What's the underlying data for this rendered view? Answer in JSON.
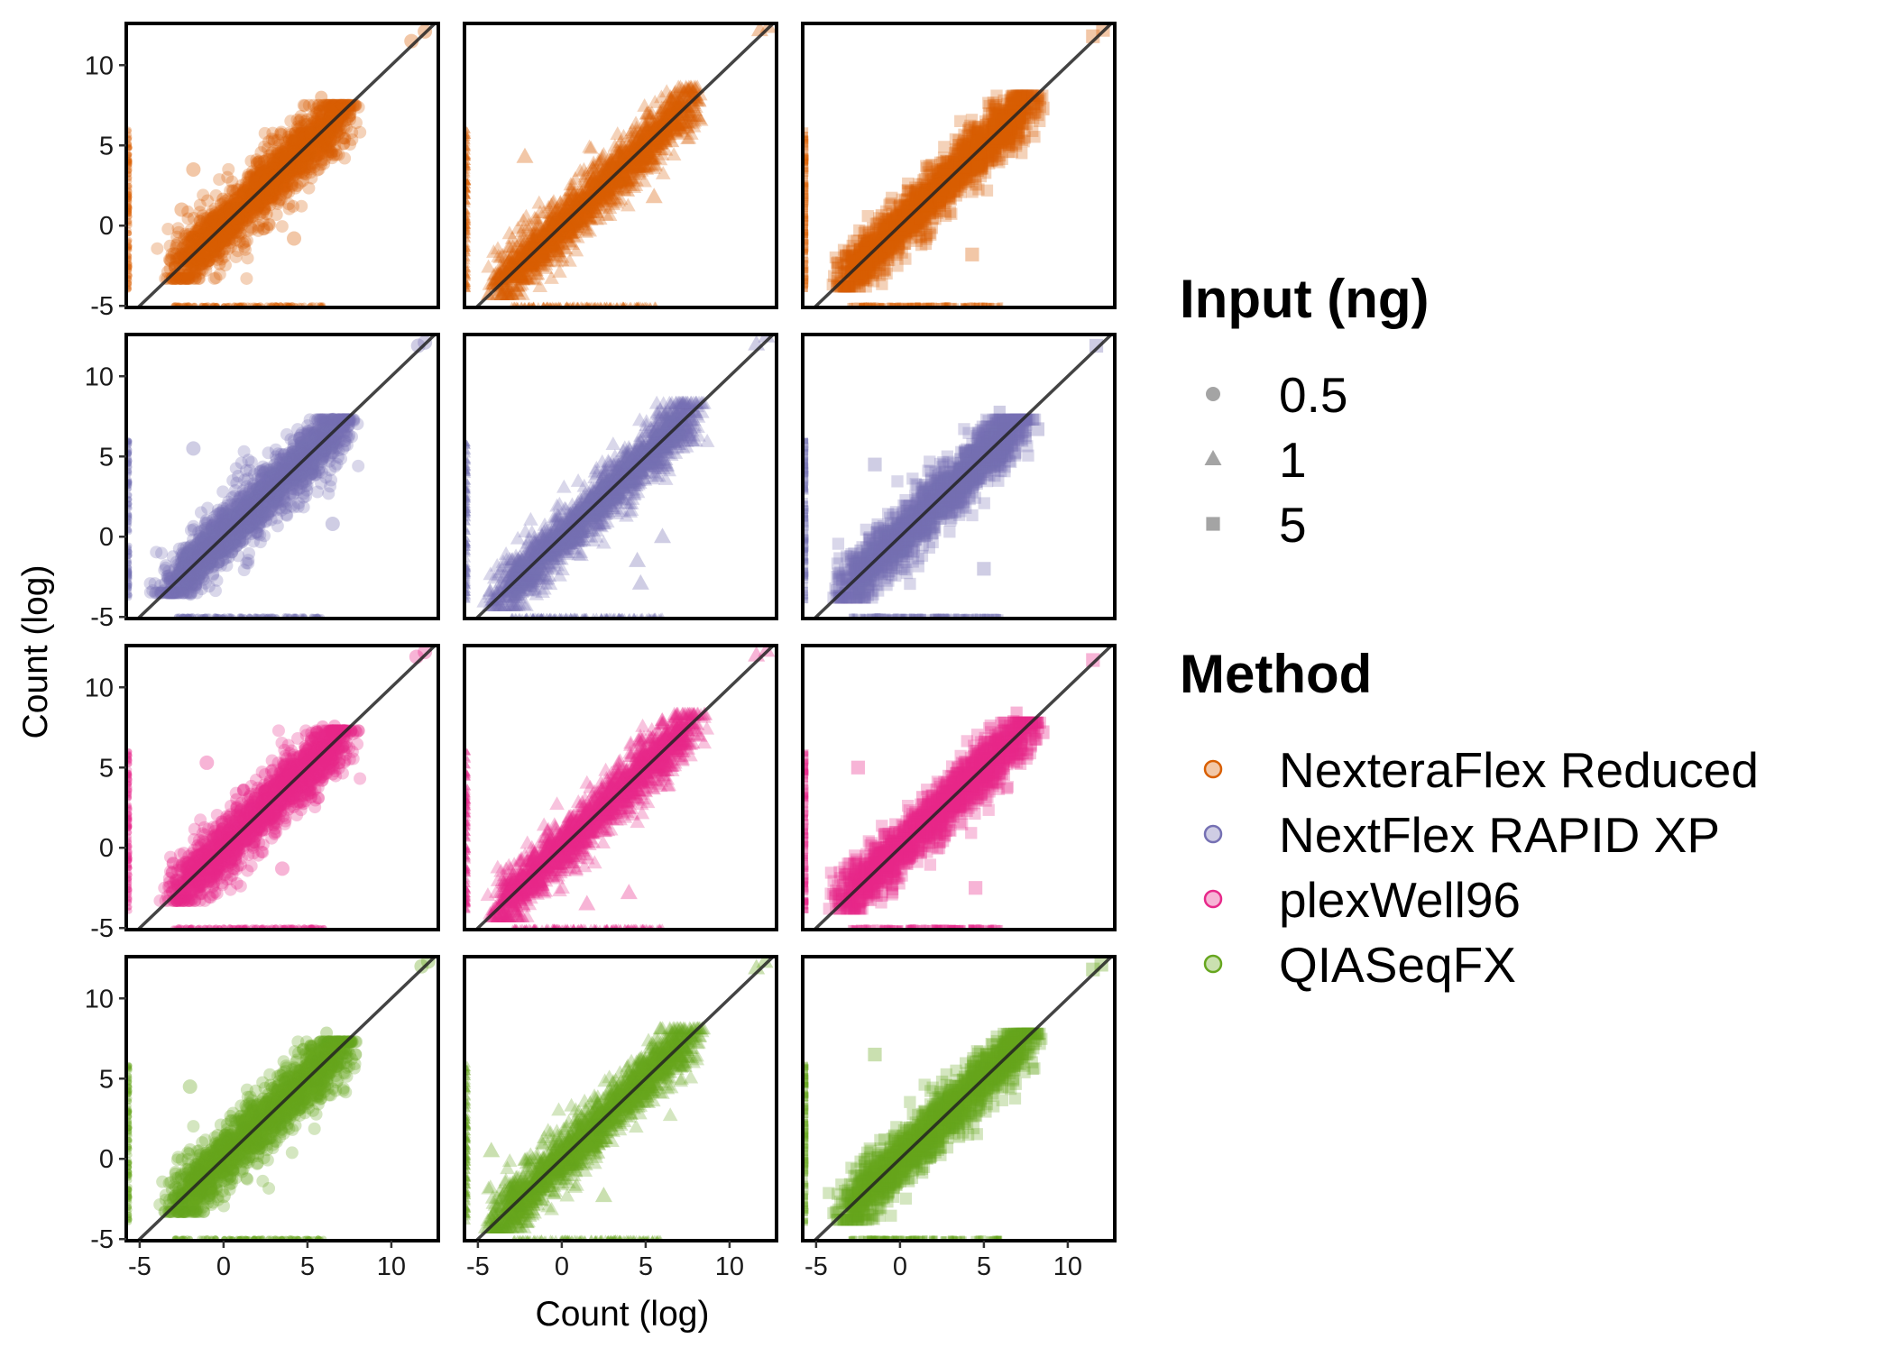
{
  "chart_data": {
    "type": "scatter",
    "facet_layout": {
      "rows": 4,
      "cols": 3
    },
    "xlabel": "Count (log)",
    "ylabel": "Count (log)",
    "xlim": [
      -5.8,
      12.8
    ],
    "ylim": [
      -5.1,
      12.6
    ],
    "xticks": [
      -5,
      0,
      5,
      10
    ],
    "yticks": [
      -5,
      0,
      5,
      10
    ],
    "reference_line": {
      "slope": 1,
      "intercept": 0,
      "color": "#222222"
    },
    "legends": [
      {
        "title": "Input (ng)",
        "color": "#9a9a9a",
        "entries": [
          {
            "label": "0.5",
            "shape": "circle"
          },
          {
            "label": "1",
            "shape": "triangle"
          },
          {
            "label": "5",
            "shape": "square"
          }
        ]
      },
      {
        "title": "Method",
        "shape": "circle",
        "entries": [
          {
            "label": "NexteraFlex Reduced",
            "color": "#D95F02"
          },
          {
            "label": "NextFlex RAPID XP",
            "color": "#7570B3"
          },
          {
            "label": "plexWell96",
            "color": "#E7298A"
          },
          {
            "label": "QIASeqFX",
            "color": "#66A61E"
          }
        ]
      }
    ],
    "series": [
      {
        "method": "NexteraFlex Reduced",
        "input_ng": "0.5",
        "color": "#D95F02",
        "shape": "circle",
        "bulk": {
          "x_range": [
            -3,
            7.5
          ],
          "y_range": [
            -3,
            7.2
          ],
          "spread": 1.2
        },
        "zero_points_x": [
          -5,
          0,
          5
        ],
        "zero_points_y": [
          -5,
          0,
          5
        ],
        "outliers": [
          [
            -2.5,
            1.0
          ],
          [
            4.2,
            -0.8
          ],
          [
            11.2,
            11.5
          ],
          [
            12,
            12.1
          ],
          [
            -1.8,
            3.5
          ]
        ]
      },
      {
        "method": "NexteraFlex Reduced",
        "input_ng": "1",
        "color": "#D95F02",
        "shape": "triangle",
        "bulk": {
          "x_range": [
            -4,
            8
          ],
          "y_range": [
            -4,
            8.3
          ],
          "spread": 1.0
        },
        "zero_points_x": [
          -5,
          0,
          5
        ],
        "zero_points_y": [
          -5,
          0,
          5
        ],
        "outliers": [
          [
            -2.2,
            4.3
          ],
          [
            5.5,
            1.8
          ],
          [
            11.8,
            12.2
          ],
          [
            12.3,
            12.4
          ]
        ]
      },
      {
        "method": "NexteraFlex Reduced",
        "input_ng": "5",
        "color": "#D95F02",
        "shape": "square",
        "bulk": {
          "x_range": [
            -3.5,
            8
          ],
          "y_range": [
            -3.5,
            7.8
          ],
          "spread": 1.0
        },
        "zero_points_x": [
          -5,
          0,
          5
        ],
        "zero_points_y": [
          -5,
          0,
          5
        ],
        "outliers": [
          [
            8.5,
            7.3
          ],
          [
            4.3,
            -1.8
          ],
          [
            11.5,
            11.8
          ],
          [
            12.1,
            12.2
          ]
        ]
      },
      {
        "method": "NextFlex RAPID XP",
        "input_ng": "0.5",
        "color": "#7570B3",
        "shape": "circle",
        "bulk": {
          "x_range": [
            -3.5,
            7.5
          ],
          "y_range": [
            -3.2,
            7.0
          ],
          "spread": 1.2
        },
        "zero_points_x": [
          -5,
          0,
          5
        ],
        "zero_points_y": [
          -5,
          0,
          5
        ],
        "outliers": [
          [
            -1.8,
            5.5
          ],
          [
            6.5,
            0.8
          ],
          [
            11.6,
            11.9
          ],
          [
            12,
            12.1
          ]
        ]
      },
      {
        "method": "NextFlex RAPID XP",
        "input_ng": "1",
        "color": "#7570B3",
        "shape": "triangle",
        "bulk": {
          "x_range": [
            -4,
            8
          ],
          "y_range": [
            -4,
            8.0
          ],
          "spread": 1.0
        },
        "zero_points_x": [
          -5,
          0,
          5
        ],
        "zero_points_y": [
          -5,
          0,
          5
        ],
        "outliers": [
          [
            4.5,
            -1.5
          ],
          [
            4.7,
            -2.9
          ],
          [
            6.0,
            0.0
          ],
          [
            11.6,
            12.0
          ],
          [
            12.2,
            12.5
          ]
        ]
      },
      {
        "method": "NextFlex RAPID XP",
        "input_ng": "5",
        "color": "#7570B3",
        "shape": "square",
        "bulk": {
          "x_range": [
            -3.5,
            7.5
          ],
          "y_range": [
            -3.5,
            7.0
          ],
          "spread": 1.1
        },
        "zero_points_x": [
          -5,
          0,
          5
        ],
        "zero_points_y": [
          -5,
          0,
          5
        ],
        "outliers": [
          [
            -1.5,
            4.5
          ],
          [
            5.0,
            -2.0
          ],
          [
            8.2,
            6.7
          ],
          [
            11.7,
            11.9
          ]
        ]
      },
      {
        "method": "plexWell96",
        "input_ng": "0.5",
        "color": "#E7298A",
        "shape": "circle",
        "bulk": {
          "x_range": [
            -3,
            7.5
          ],
          "y_range": [
            -3,
            7.0
          ],
          "spread": 1.2
        },
        "zero_points_x": [
          -5,
          0,
          5
        ],
        "zero_points_y": [
          -5,
          0,
          5
        ],
        "outliers": [
          [
            -1.0,
            5.3
          ],
          [
            3.5,
            -1.3
          ],
          [
            11.5,
            11.9
          ],
          [
            12,
            12.2
          ]
        ]
      },
      {
        "method": "plexWell96",
        "input_ng": "1",
        "color": "#E7298A",
        "shape": "triangle",
        "bulk": {
          "x_range": [
            -4,
            8
          ],
          "y_range": [
            -4,
            8.0
          ],
          "spread": 1.0
        },
        "zero_points_x": [
          -5,
          0,
          5
        ],
        "zero_points_y": [
          -5,
          0,
          5
        ],
        "outliers": [
          [
            1.5,
            -3.5
          ],
          [
            4.0,
            -2.8
          ],
          [
            11.6,
            12.0
          ],
          [
            12.2,
            12.3
          ]
        ]
      },
      {
        "method": "plexWell96",
        "input_ng": "5",
        "color": "#E7298A",
        "shape": "square",
        "bulk": {
          "x_range": [
            -3.5,
            8
          ],
          "y_range": [
            -3.5,
            7.5
          ],
          "spread": 1.0
        },
        "zero_points_x": [
          -5,
          0,
          5
        ],
        "zero_points_y": [
          -5,
          0,
          5
        ],
        "outliers": [
          [
            -2.5,
            5.0
          ],
          [
            4.5,
            -2.5
          ],
          [
            8.5,
            7.2
          ],
          [
            11.5,
            11.7
          ]
        ]
      },
      {
        "method": "QIASeqFX",
        "input_ng": "0.5",
        "color": "#66A61E",
        "shape": "circle",
        "bulk": {
          "x_range": [
            -3,
            7.5
          ],
          "y_range": [
            -3,
            7.0
          ],
          "spread": 1.2
        },
        "zero_points_x": [
          -5,
          0,
          5
        ],
        "zero_points_y": [
          -5,
          0,
          5
        ],
        "outliers": [
          [
            -2.0,
            4.5
          ],
          [
            0.0,
            -2.3
          ],
          [
            11.8,
            12.0
          ],
          [
            12.2,
            12.3
          ]
        ]
      },
      {
        "method": "QIASeqFX",
        "input_ng": "1",
        "color": "#66A61E",
        "shape": "triangle",
        "bulk": {
          "x_range": [
            -4,
            8
          ],
          "y_range": [
            -4,
            7.8
          ],
          "spread": 1.0
        },
        "zero_points_x": [
          -5,
          0,
          5
        ],
        "zero_points_y": [
          -5,
          0,
          5
        ],
        "outliers": [
          [
            -4.2,
            0.5
          ],
          [
            2.5,
            -2.3
          ],
          [
            11.6,
            11.9
          ],
          [
            12.1,
            12.3
          ]
        ]
      },
      {
        "method": "QIASeqFX",
        "input_ng": "5",
        "color": "#66A61E",
        "shape": "square",
        "bulk": {
          "x_range": [
            -3.5,
            8
          ],
          "y_range": [
            -3.5,
            7.5
          ],
          "spread": 1.0
        },
        "zero_points_x": [
          -5,
          0,
          5
        ],
        "zero_points_y": [
          -5,
          0,
          5
        ],
        "outliers": [
          [
            -1.5,
            6.5
          ],
          [
            6.5,
            7.2
          ],
          [
            11.5,
            11.8
          ],
          [
            12.0,
            12.1
          ]
        ]
      }
    ]
  }
}
